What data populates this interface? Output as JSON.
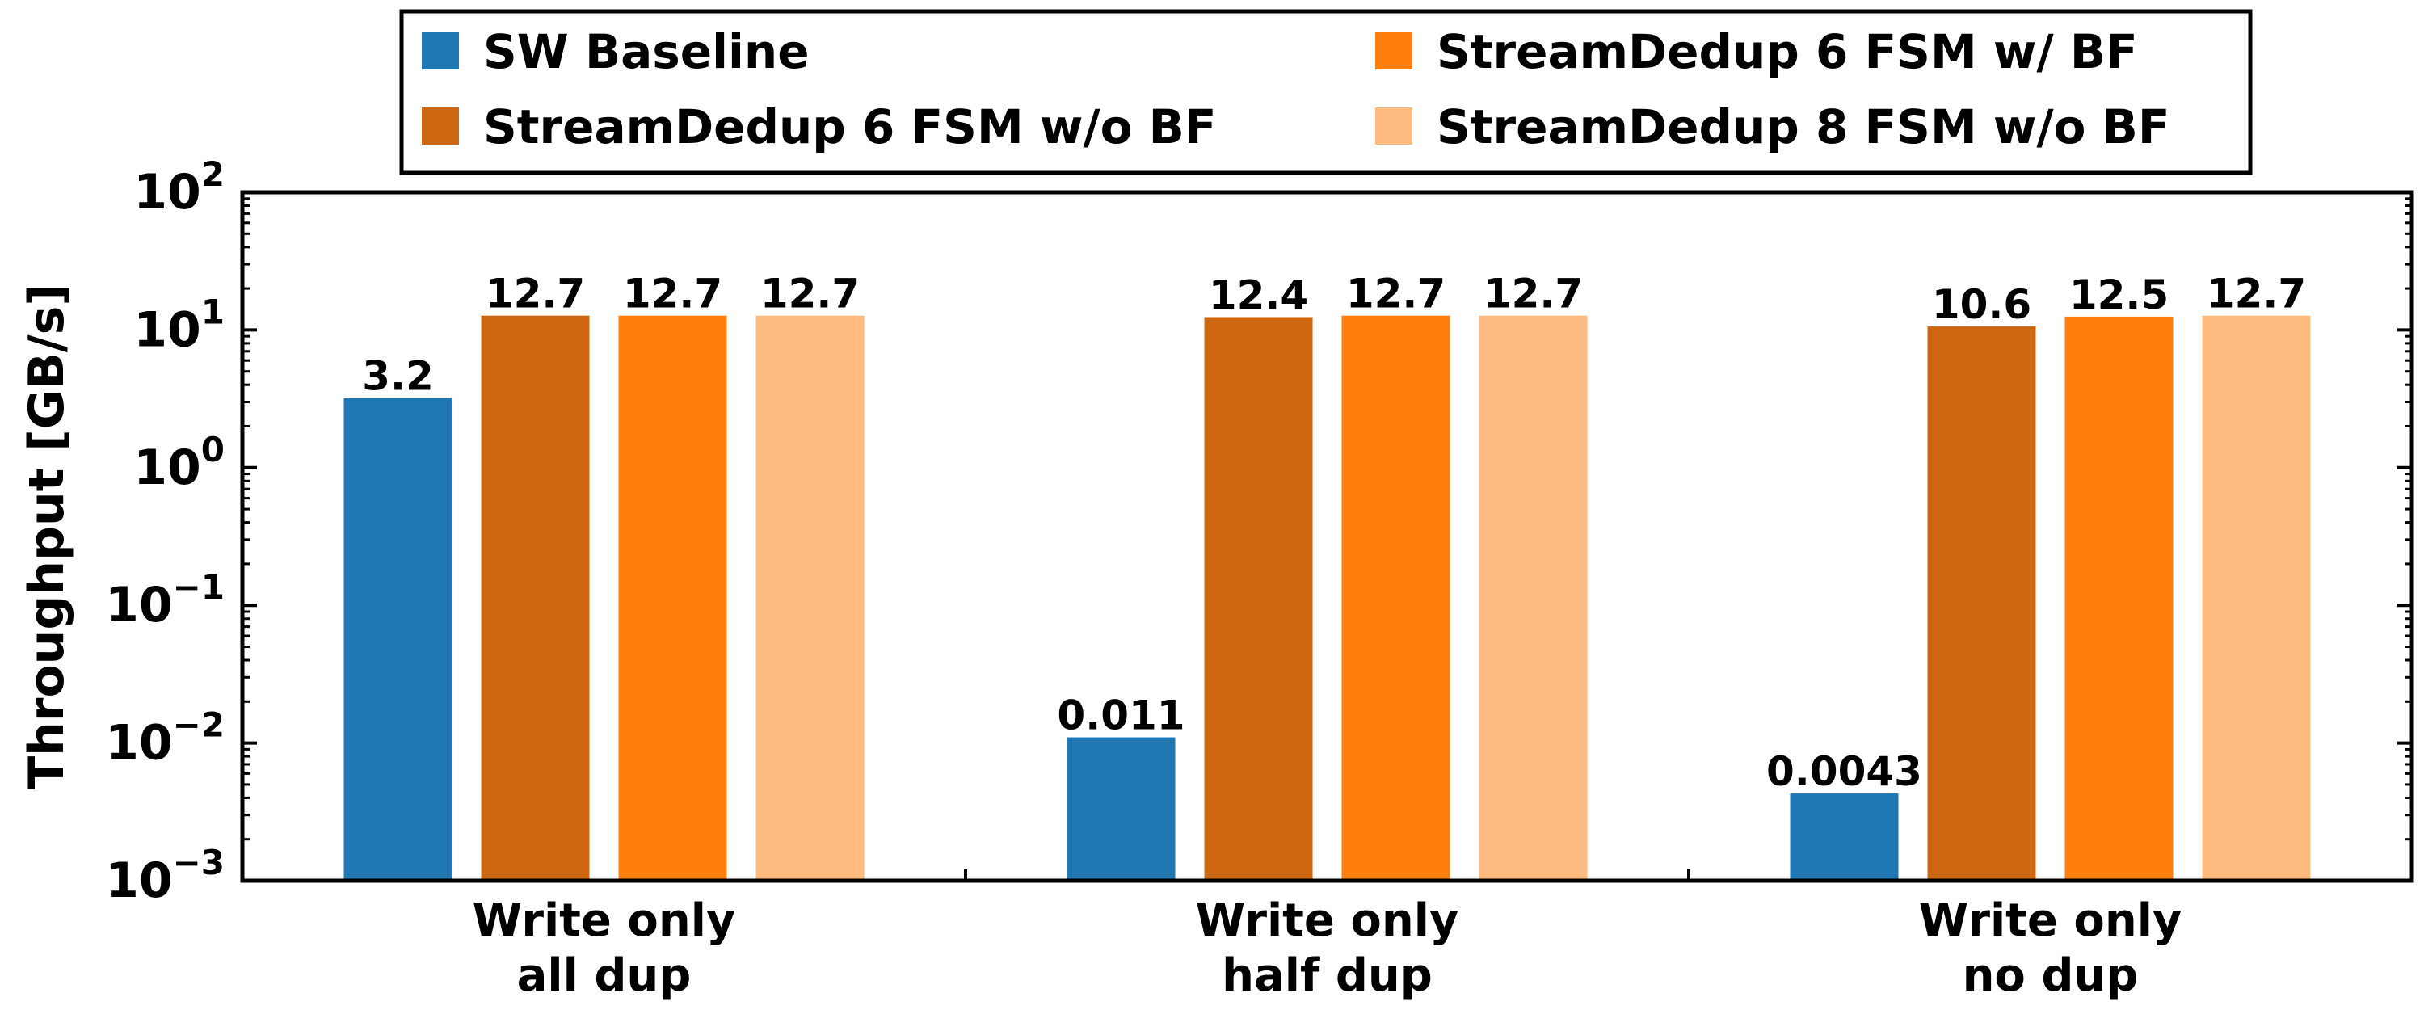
{
  "chart_data": {
    "type": "bar",
    "title": "",
    "xlabel": "",
    "ylabel": "Throughput [GB/s]",
    "yscale": "log",
    "ylim": [
      0.001,
      100
    ],
    "yticks": [
      {
        "value": 100,
        "base": "10",
        "exp": "2"
      },
      {
        "value": 10,
        "base": "10",
        "exp": "1"
      },
      {
        "value": 1,
        "base": "10",
        "exp": "0"
      },
      {
        "value": 0.1,
        "base": "10",
        "exp": "−1"
      },
      {
        "value": 0.01,
        "base": "10",
        "exp": "−2"
      },
      {
        "value": 0.001,
        "base": "10",
        "exp": "−3"
      }
    ],
    "categories": [
      {
        "lines": [
          "Write only",
          "all dup"
        ]
      },
      {
        "lines": [
          "Write only",
          "half dup"
        ]
      },
      {
        "lines": [
          "Write only",
          "no dup"
        ]
      }
    ],
    "series": [
      {
        "name": "SW Baseline",
        "color": "#1f77b4",
        "values": [
          3.2,
          0.011,
          0.0043
        ],
        "labels": [
          "3.2",
          "0.011",
          "0.0043"
        ]
      },
      {
        "name": "StreamDedup 6 FSM w/o BF",
        "color": "#cc6611",
        "values": [
          12.7,
          12.4,
          10.6
        ],
        "labels": [
          "12.7",
          "12.4",
          "10.6"
        ]
      },
      {
        "name": "StreamDedup 6 FSM w/ BF",
        "color": "#ff7f0e",
        "values": [
          12.7,
          12.7,
          12.5
        ],
        "labels": [
          "12.7",
          "12.7",
          "12.5"
        ]
      },
      {
        "name": "StreamDedup 8 FSM w/o BF",
        "color": "#ffbb80",
        "values": [
          12.7,
          12.7,
          12.7
        ],
        "labels": [
          "12.7",
          "12.7",
          "12.7"
        ]
      }
    ],
    "legend": {
      "placement": "top-center",
      "columns": 2,
      "order": [
        0,
        2,
        1,
        3
      ]
    },
    "grid": false
  }
}
